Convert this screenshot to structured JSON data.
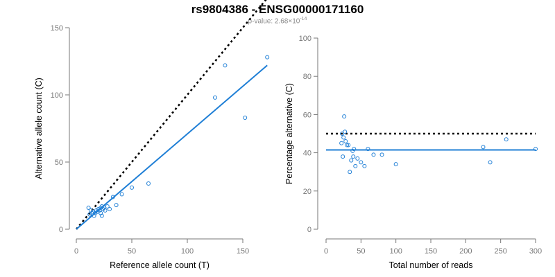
{
  "title": "rs9804386 - ENSG00000171160",
  "subtitle": {
    "prefix": "p-value: 2.68×10",
    "exponent": "-14"
  },
  "colors": {
    "points": "#1f7fd6",
    "fit": "#1f7fd6",
    "reference": "#000000",
    "axis": "#777777"
  },
  "chart_data": [
    {
      "type": "scatter",
      "xlabel": "Reference allele count (T)",
      "ylabel": "Alternative allele count (C)",
      "xlim": [
        0,
        175
      ],
      "ylim": [
        0,
        150
      ],
      "xticks": [
        "0",
        "50",
        "100",
        "150"
      ],
      "yticks": [
        "0",
        "50",
        "100",
        "150"
      ],
      "points": [
        [
          11,
          16
        ],
        [
          12,
          11
        ],
        [
          13,
          14
        ],
        [
          14,
          12
        ],
        [
          15,
          13
        ],
        [
          16,
          10
        ],
        [
          17,
          12
        ],
        [
          18,
          14
        ],
        [
          19,
          13
        ],
        [
          20,
          15
        ],
        [
          21,
          14
        ],
        [
          22,
          16
        ],
        [
          22,
          12
        ],
        [
          23,
          10
        ],
        [
          23,
          17
        ],
        [
          24,
          15
        ],
        [
          25,
          16
        ],
        [
          26,
          14
        ],
        [
          28,
          17
        ],
        [
          30,
          15
        ],
        [
          33,
          24
        ],
        [
          36,
          18
        ],
        [
          41,
          26
        ],
        [
          50,
          31
        ],
        [
          65,
          34
        ],
        [
          125,
          98
        ],
        [
          134,
          122
        ],
        [
          152,
          83
        ],
        [
          172,
          128
        ]
      ],
      "fit_line": {
        "x": [
          0,
          172
        ],
        "y": [
          0,
          122
        ],
        "style": "solid"
      },
      "reference_line": {
        "x": [
          0,
          172
        ],
        "y": [
          0,
          172
        ],
        "style": "dotted"
      },
      "grid": false
    },
    {
      "type": "scatter",
      "xlabel": "Total number of reads",
      "ylabel": "Percentage alternative (C)",
      "xlim": [
        0,
        300
      ],
      "ylim": [
        0,
        100
      ],
      "xticks": [
        "0",
        "50",
        "100",
        "150",
        "200",
        "250",
        "300"
      ],
      "yticks": [
        "0",
        "20",
        "40",
        "60",
        "80",
        "100"
      ],
      "points": [
        [
          22,
          45
        ],
        [
          23,
          50
        ],
        [
          24,
          38
        ],
        [
          25,
          48
        ],
        [
          26,
          59
        ],
        [
          27,
          51
        ],
        [
          28,
          46
        ],
        [
          30,
          44
        ],
        [
          32,
          44
        ],
        [
          34,
          30
        ],
        [
          36,
          36
        ],
        [
          38,
          41
        ],
        [
          39,
          38
        ],
        [
          40,
          42
        ],
        [
          42,
          33
        ],
        [
          45,
          37
        ],
        [
          50,
          35
        ],
        [
          55,
          33
        ],
        [
          60,
          42
        ],
        [
          68,
          39
        ],
        [
          80,
          39
        ],
        [
          100,
          34
        ],
        [
          225,
          43
        ],
        [
          235,
          35
        ],
        [
          258,
          47
        ],
        [
          300,
          42
        ]
      ],
      "fit_line": {
        "x": [
          0,
          300
        ],
        "y": [
          41.5,
          41.5
        ],
        "style": "solid"
      },
      "reference_line": {
        "x": [
          0,
          300
        ],
        "y": [
          50,
          50
        ],
        "style": "dotted"
      },
      "grid": false
    }
  ]
}
